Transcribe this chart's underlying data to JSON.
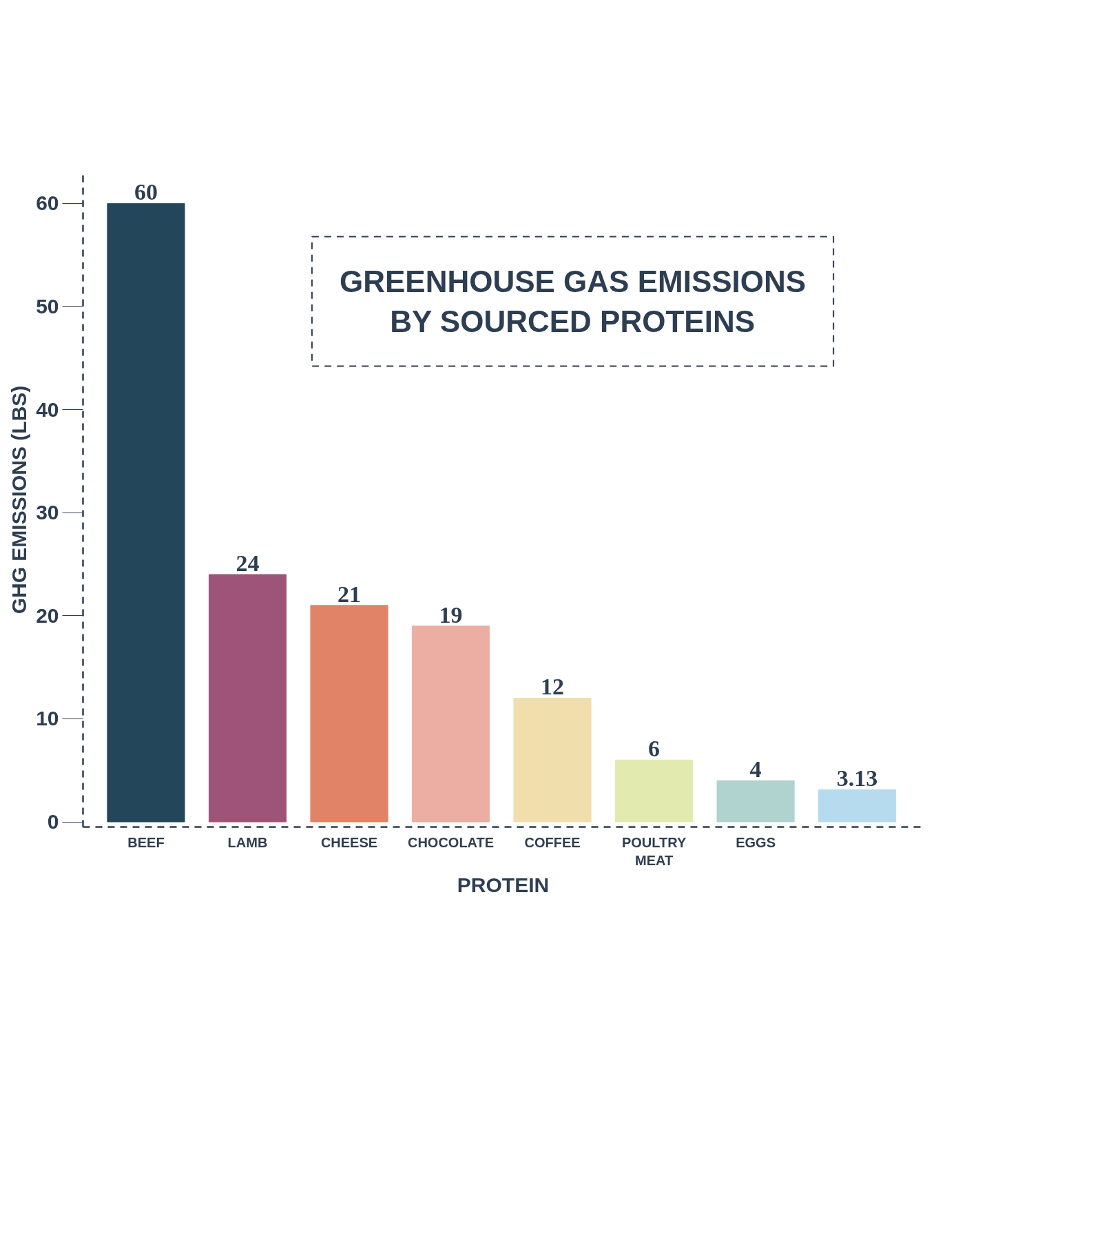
{
  "chart_data": {
    "type": "bar",
    "title": "GREENHOUSE GAS EMISSIONS BY SOURCED PROTEINS",
    "xlabel": "PROTEIN",
    "ylabel": "GHG EMISSIONS (LBS)",
    "categories": [
      "BEEF",
      "LAMB",
      "CHEESE",
      "CHOCOLATE",
      "COFFEE",
      "POULTRY MEAT",
      "EGGS",
      null
    ],
    "values": [
      60,
      24,
      21,
      19,
      12,
      6,
      4,
      3.13
    ],
    "colors": [
      "#24465b",
      "#9e5479",
      "#e08366",
      "#ecada3",
      "#f1dead",
      "#e3eab0",
      "#b1d3d0",
      "#b7dbee"
    ],
    "ylim": [
      -0.5,
      63
    ],
    "yticks": [
      0,
      10,
      20,
      30,
      40,
      50,
      60
    ],
    "grid": false,
    "data_labels": true
  }
}
